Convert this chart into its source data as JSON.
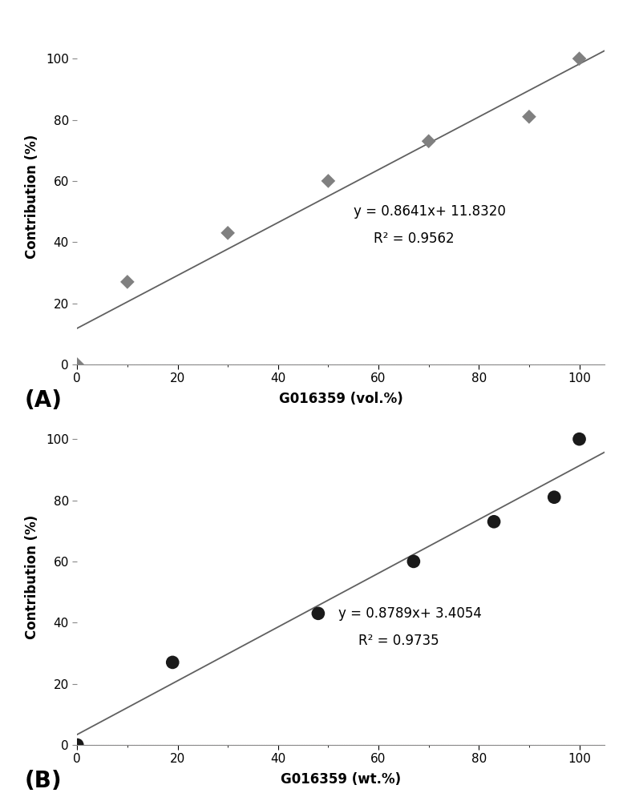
{
  "plot_A": {
    "x": [
      0,
      10,
      30,
      50,
      70,
      90,
      100
    ],
    "y": [
      0,
      27,
      43,
      60,
      73,
      81,
      100
    ],
    "slope": 0.8641,
    "intercept": 11.832,
    "r2": 0.9562,
    "xlabel": "G016359 (vol.%)",
    "ylabel": "Contribution (%)",
    "label": "(A)",
    "equation": "y = 0.8641x+ 11.8320",
    "r2_text": "R² = 0.9562",
    "eq_x": 55,
    "eq_y": 50,
    "marker": "D",
    "marker_color": "#808080",
    "marker_size": 9
  },
  "plot_B": {
    "x": [
      0,
      19,
      48,
      67,
      83,
      95,
      100
    ],
    "y": [
      0,
      27,
      43,
      60,
      73,
      81,
      100
    ],
    "slope": 0.8789,
    "intercept": 3.4054,
    "r2": 0.9735,
    "xlabel": "G016359 (wt.%)",
    "ylabel": "Contribution (%)",
    "label": "(B)",
    "equation": "y = 0.8789x+ 3.4054",
    "r2_text": "R² = 0.9735",
    "eq_x": 52,
    "eq_y": 43,
    "marker": "o",
    "marker_color": "#1a1a1a",
    "marker_size": 12
  },
  "line_color": "#606060",
  "line_width": 1.3,
  "xlim": [
    0,
    105
  ],
  "ylim": [
    0,
    110
  ],
  "xticks": [
    0,
    20,
    40,
    60,
    80,
    100
  ],
  "yticks": [
    0,
    20,
    40,
    60,
    80,
    100
  ],
  "bg_color": "#ffffff",
  "baseline_color": "#ddb0d0",
  "axis_label_fontsize": 12,
  "tick_fontsize": 11,
  "eq_fontsize": 12,
  "panel_label_fontsize": 20
}
